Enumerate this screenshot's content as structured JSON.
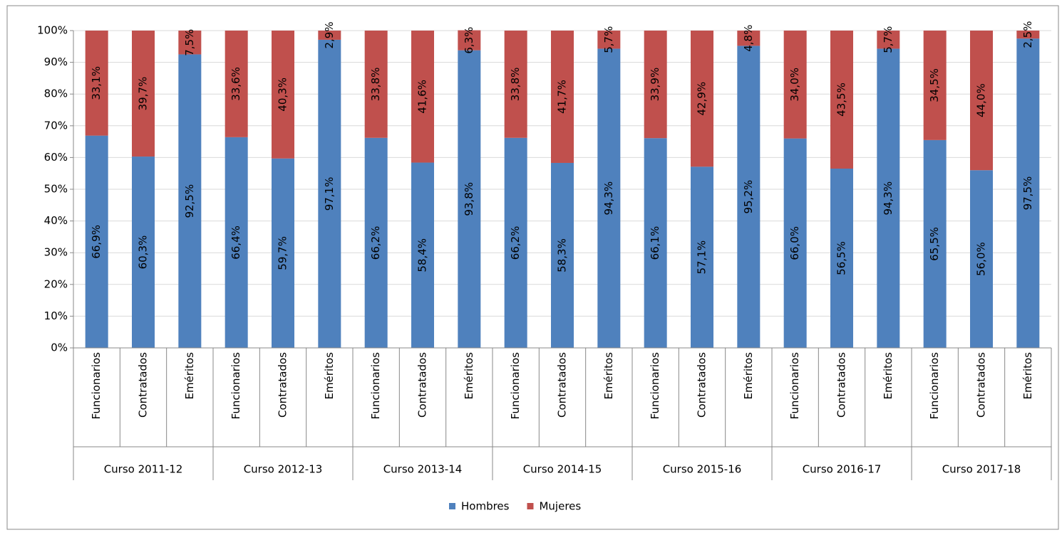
{
  "chart_data": {
    "type": "stacked_bar",
    "categories": [
      "Funcionarios",
      "Contratados",
      "Eméritos",
      "Funcionarios",
      "Contratados",
      "Eméritos",
      "Funcionarios",
      "Contratados",
      "Eméritos",
      "Funcionarios",
      "Contratados",
      "Eméritos",
      "Funcionarios",
      "Contratados",
      "Eméritos",
      "Funcionarios",
      "Contratados",
      "Eméritos",
      "Funcionarios",
      "Contratados",
      "Eméritos"
    ],
    "groups": [
      "Curso 2011-12",
      "Curso 2012-13",
      "Curso 2013-14",
      "Curso 2014-15",
      "Curso 2015-16",
      "Curso 2016-17",
      "Curso 2017-18"
    ],
    "series": [
      {
        "name": "Hombres",
        "color": "#4f81bd",
        "values": [
          66.9,
          60.3,
          92.5,
          66.4,
          59.7,
          97.1,
          66.2,
          58.4,
          93.8,
          66.2,
          58.3,
          94.3,
          66.1,
          57.1,
          95.2,
          66.0,
          56.5,
          94.3,
          65.5,
          56.0,
          97.5
        ],
        "value_labels": [
          "66,9%",
          "60,3%",
          "92,5%",
          "66,4%",
          "59,7%",
          "97,1%",
          "66,2%",
          "58,4%",
          "93,8%",
          "66,2%",
          "58,3%",
          "94,3%",
          "66,1%",
          "57,1%",
          "95,2%",
          "66,0%",
          "56,5%",
          "94,3%",
          "65,5%",
          "56,0%",
          "97,5%"
        ]
      },
      {
        "name": "Mujeres",
        "color": "#c0504d",
        "values": [
          33.1,
          39.7,
          7.5,
          33.6,
          40.3,
          2.9,
          33.8,
          41.6,
          6.3,
          33.8,
          41.7,
          5.7,
          33.9,
          42.9,
          4.8,
          34.0,
          43.5,
          5.7,
          34.5,
          44.0,
          2.5
        ],
        "value_labels": [
          "33,1%",
          "39,7%",
          "7,5%",
          "33,6%",
          "40,3%",
          "2,9%",
          "33,8%",
          "41,6%",
          "6,3%",
          "33,8%",
          "41,7%",
          "5,7%",
          "33,9%",
          "42,9%",
          "4,8%",
          "34,0%",
          "43,5%",
          "5,7%",
          "34,5%",
          "44,0%",
          "2,5%"
        ]
      }
    ],
    "ylim": [
      0,
      100
    ],
    "yticks": [
      {
        "value": 0,
        "label": "0%"
      },
      {
        "value": 10,
        "label": "10%"
      },
      {
        "value": 20,
        "label": "20%"
      },
      {
        "value": 30,
        "label": "30%"
      },
      {
        "value": 40,
        "label": "40%"
      },
      {
        "value": 50,
        "label": "50%"
      },
      {
        "value": 60,
        "label": "60%"
      },
      {
        "value": 70,
        "label": "70%"
      },
      {
        "value": 80,
        "label": "80%"
      },
      {
        "value": 90,
        "label": "90%"
      },
      {
        "value": 100,
        "label": "100%"
      }
    ],
    "grid": true,
    "legend": "bottom"
  }
}
